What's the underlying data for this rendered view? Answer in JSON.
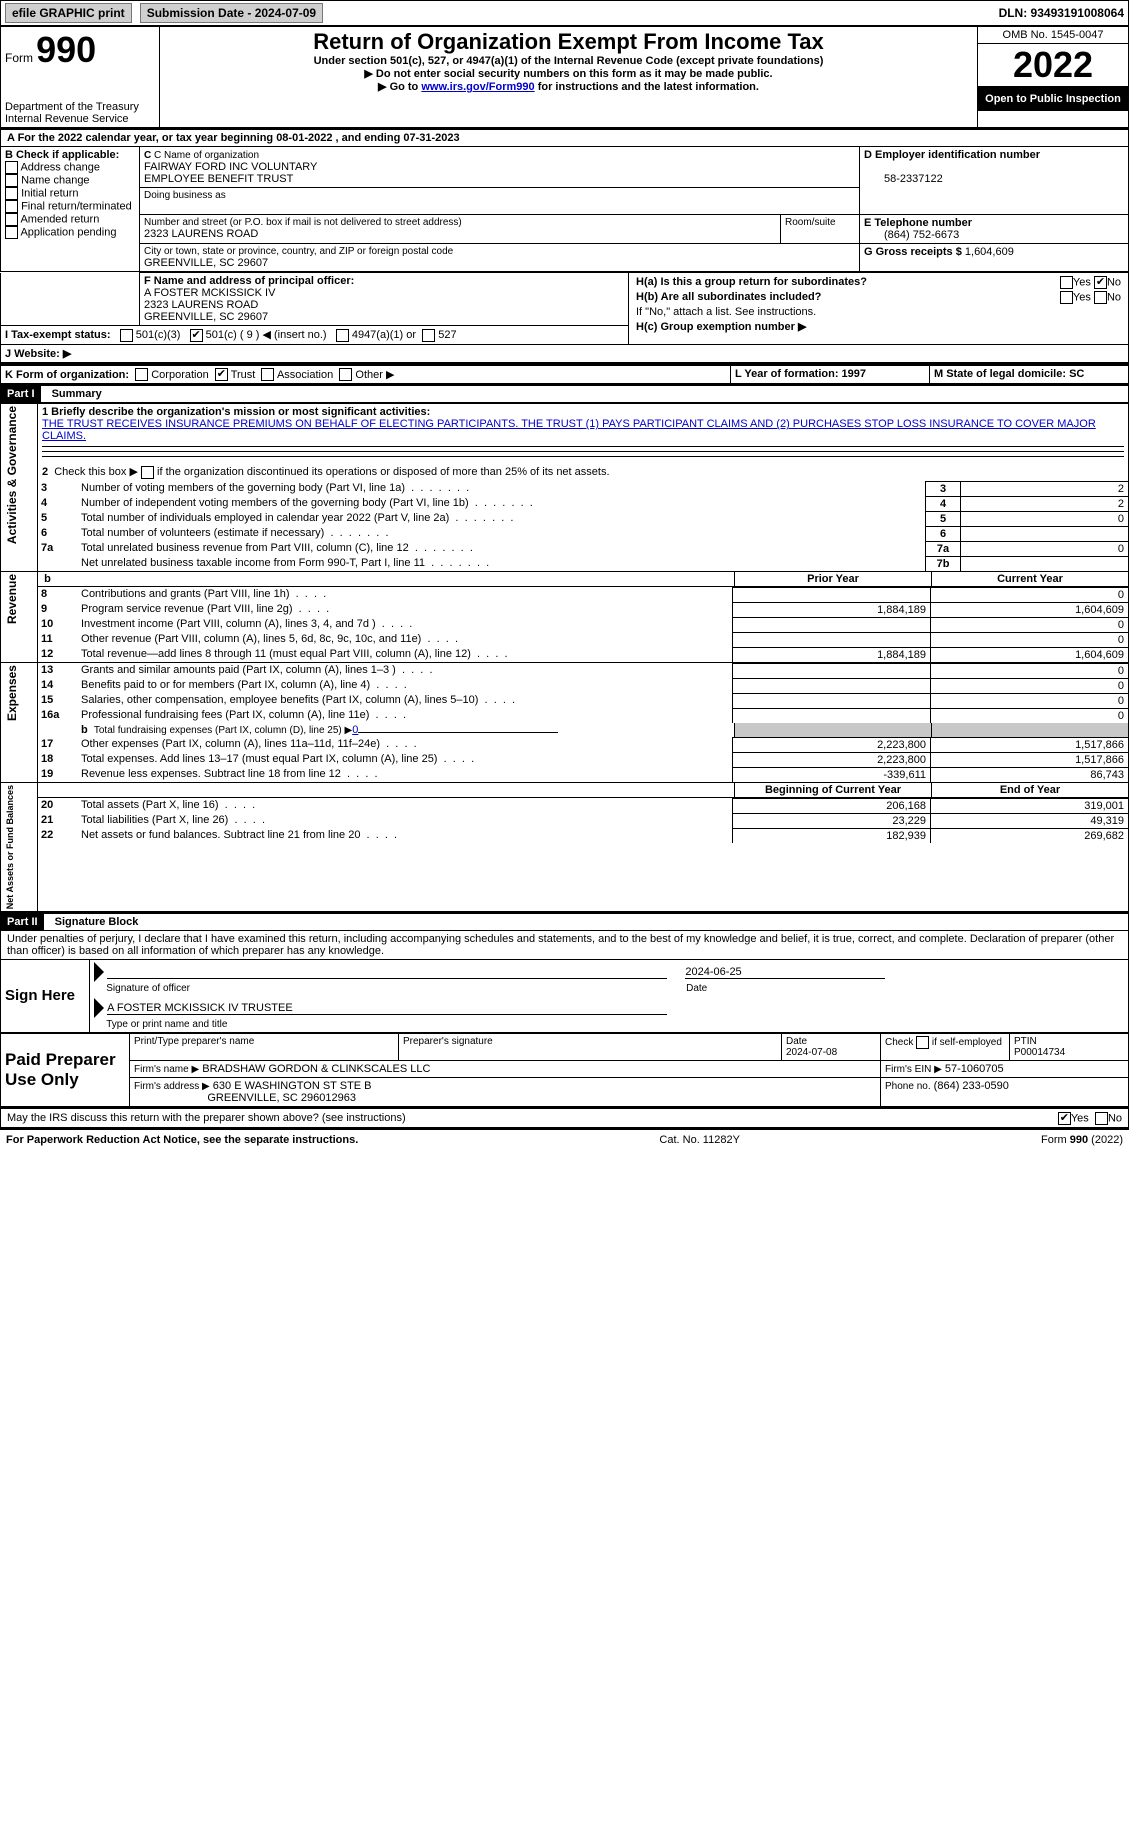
{
  "top_bar": {
    "efile_label": "efile GRAPHIC print",
    "sub_date_label": "Submission Date - 2024-07-09",
    "dln_label": "DLN: 93493191008064"
  },
  "header_left": {
    "form_word": "Form",
    "form_num": "990",
    "dept": "Department of the Treasury",
    "irs": "Internal Revenue Service"
  },
  "header_center": {
    "title": "Return of Organization Exempt From Income Tax",
    "sub1": "Under section 501(c), 527, or 4947(a)(1) of the Internal Revenue Code (except private foundations)",
    "sub2": "▶ Do not enter social security numbers on this form as it may be made public.",
    "sub3_pre": "▶ Go to ",
    "sub3_link": "www.irs.gov/Form990",
    "sub3_post": " for instructions and the latest information."
  },
  "header_right": {
    "omb": "OMB No. 1545-0047",
    "year": "2022",
    "open": "Open to Public Inspection"
  },
  "line_a": "A For the 2022 calendar year, or tax year beginning 08-01-2022    , and ending 07-31-2023",
  "box_b_label": "B Check if applicable:",
  "box_b_items": [
    "Address change",
    "Name change",
    "Initial return",
    "Final return/terminated",
    "Amended return",
    "Application pending"
  ],
  "box_c_label": "C Name of organization",
  "org_name_1": "FAIRWAY FORD INC VOLUNTARY",
  "org_name_2": "EMPLOYEE BENEFIT TRUST",
  "dba_label": "Doing business as",
  "addr_label": "Number and street (or P.O. box if mail is not delivered to street address)",
  "addr_val": "2323 LAURENS ROAD",
  "room_label": "Room/suite",
  "city_label": "City or town, state or province, country, and ZIP or foreign postal code",
  "city_val": "GREENVILLE, SC  29607",
  "box_d_label": "D Employer identification number",
  "ein": "58-2337122",
  "box_e_label": "E Telephone number",
  "phone": "(864) 752-6673",
  "box_g_label": "G Gross receipts $",
  "gross": "1,604,609",
  "box_f_label": "F  Name and address of principal officer:",
  "officer_name": "A FOSTER MCKISSICK IV",
  "officer_addr": "2323 LAURENS ROAD",
  "officer_city": "GREENVILLE, SC  29607",
  "box_h_a": "H(a)  Is this a group return for subordinates?",
  "box_h_b": "H(b)  Are all subordinates included?",
  "box_h_b_note": "If \"No,\" attach a list. See instructions.",
  "box_h_c": "H(c)  Group exemption number ▶",
  "yes": "Yes",
  "no": "No",
  "line_i_label": "I    Tax-exempt status:",
  "i_501c3": "501(c)(3)",
  "i_501c": "501(c) ( 9 ) ◀ (insert no.)",
  "i_4947": "4947(a)(1) or",
  "i_527": "527",
  "line_j_label": "J   Website: ▶",
  "line_k_label": "K Form of organization:",
  "k_corp": "Corporation",
  "k_trust": "Trust",
  "k_assoc": "Association",
  "k_other": "Other ▶",
  "box_l": "L Year of formation: 1997",
  "box_m": "M State of legal domicile: SC",
  "part1": "Part I",
  "part1_title": "Summary",
  "part2": "Part II",
  "part2_title": "Signature Block",
  "vert_1": "Activities & Governance",
  "vert_2": "Revenue",
  "vert_3": "Expenses",
  "vert_4": "Net Assets or Fund Balances",
  "p1_l1_label": "1   Briefly describe the organization's mission or most significant activities:",
  "p1_l1_text": "THE TRUST RECEIVES INSURANCE PREMIUMS ON BEHALF OF ELECTING PARTICIPANTS. THE TRUST (1) PAYS PARTICIPANT CLAIMS AND (2) PURCHASES STOP LOSS INSURANCE TO COVER MAJOR CLAIMS.",
  "p1_l2": "2   Check this box ▶         if the organization discontinued its operations or disposed of more than 25% of its net assets.",
  "lines_ag": [
    {
      "n": "3",
      "t": "Number of voting members of the governing body (Part VI, line 1a)",
      "b": "3",
      "v": "2"
    },
    {
      "n": "4",
      "t": "Number of independent voting members of the governing body (Part VI, line 1b)",
      "b": "4",
      "v": "2"
    },
    {
      "n": "5",
      "t": "Total number of individuals employed in calendar year 2022 (Part V, line 2a)",
      "b": "5",
      "v": "0"
    },
    {
      "n": "6",
      "t": "Total number of volunteers (estimate if necessary)",
      "b": "6",
      "v": ""
    },
    {
      "n": "7a",
      "t": "Total unrelated business revenue from Part VIII, column (C), line 12",
      "b": "7a",
      "v": "0"
    },
    {
      "n": "",
      "t": "Net unrelated business taxable income from Form 990-T, Part I, line 11",
      "b": "7b",
      "v": ""
    }
  ],
  "col_prior": "Prior Year",
  "col_current": "Current Year",
  "lines_rev": [
    {
      "n": "8",
      "t": "Contributions and grants (Part VIII, line 1h)",
      "p": "",
      "c": "0"
    },
    {
      "n": "9",
      "t": "Program service revenue (Part VIII, line 2g)",
      "p": "1,884,189",
      "c": "1,604,609"
    },
    {
      "n": "10",
      "t": "Investment income (Part VIII, column (A), lines 3, 4, and 7d )",
      "p": "",
      "c": "0"
    },
    {
      "n": "11",
      "t": "Other revenue (Part VIII, column (A), lines 5, 6d, 8c, 9c, 10c, and 11e)",
      "p": "",
      "c": "0"
    },
    {
      "n": "12",
      "t": "Total revenue—add lines 8 through 11 (must equal Part VIII, column (A), line 12)",
      "p": "1,884,189",
      "c": "1,604,609"
    }
  ],
  "lines_exp": [
    {
      "n": "13",
      "t": "Grants and similar amounts paid (Part IX, column (A), lines 1–3 )",
      "p": "",
      "c": "0"
    },
    {
      "n": "14",
      "t": "Benefits paid to or for members (Part IX, column (A), line 4)",
      "p": "",
      "c": "0"
    },
    {
      "n": "15",
      "t": "Salaries, other compensation, employee benefits (Part IX, column (A), lines 5–10)",
      "p": "",
      "c": "0"
    },
    {
      "n": "16a",
      "t": "Professional fundraising fees (Part IX, column (A), line 11e)",
      "p": "",
      "c": "0"
    }
  ],
  "line_16b_label": "b   Total fundraising expenses (Part IX, column (D), line 25) ▶",
  "line_16b_val": "0",
  "lines_exp2": [
    {
      "n": "17",
      "t": "Other expenses (Part IX, column (A), lines 11a–11d, 11f–24e)",
      "p": "2,223,800",
      "c": "1,517,866"
    },
    {
      "n": "18",
      "t": "Total expenses. Add lines 13–17 (must equal Part IX, column (A), line 25)",
      "p": "2,223,800",
      "c": "1,517,866"
    },
    {
      "n": "19",
      "t": "Revenue less expenses. Subtract line 18 from line 12",
      "p": "-339,611",
      "c": "86,743"
    }
  ],
  "col_begin": "Beginning of Current Year",
  "col_end": "End of Year",
  "lines_net": [
    {
      "n": "20",
      "t": "Total assets (Part X, line 16)",
      "p": "206,168",
      "c": "319,001"
    },
    {
      "n": "21",
      "t": "Total liabilities (Part X, line 26)",
      "p": "23,229",
      "c": "49,319"
    },
    {
      "n": "22",
      "t": "Net assets or fund balances. Subtract line 21 from line 20",
      "p": "182,939",
      "c": "269,682"
    }
  ],
  "sig_decl": "Under penalties of perjury, I declare that I have examined this return, including accompanying schedules and statements, and to the best of my knowledge and belief, it is true, correct, and complete. Declaration of preparer (other than officer) is based on all information of which preparer has any knowledge.",
  "sign_here": "Sign Here",
  "sig_of_officer": "Signature of officer",
  "sig_date": "2024-06-25",
  "sig_date_label": "Date",
  "officer_print": "A FOSTER MCKISSICK IV  TRUSTEE",
  "type_name": "Type or print name and title",
  "paid_prep": "Paid Preparer Use Only",
  "prep_name_label": "Print/Type preparer's name",
  "prep_sig_label": "Preparer's signature",
  "prep_date_label": "Date",
  "prep_date_val": "2024-07-08",
  "prep_check_label": "Check          if self-employed",
  "ptin_label": "PTIN",
  "ptin_val": "P00014734",
  "firm_name_label": "Firm's name     ▶",
  "firm_name": "BRADSHAW GORDON & CLINKSCALES LLC",
  "firm_ein_label": "Firm's EIN ▶",
  "firm_ein": "57-1060705",
  "firm_addr_label": "Firm's address ▶",
  "firm_addr1": "630 E WASHINGTON ST STE B",
  "firm_addr2": "GREENVILLE, SC  296012963",
  "firm_phone_label": "Phone no.",
  "firm_phone": "(864) 233-0590",
  "irs_discuss": "May the IRS discuss this return with the preparer shown above? (see instructions)",
  "footer_left": "For Paperwork Reduction Act Notice, see the separate instructions.",
  "footer_mid": "Cat. No. 11282Y",
  "footer_right": "Form 990 (2022)"
}
